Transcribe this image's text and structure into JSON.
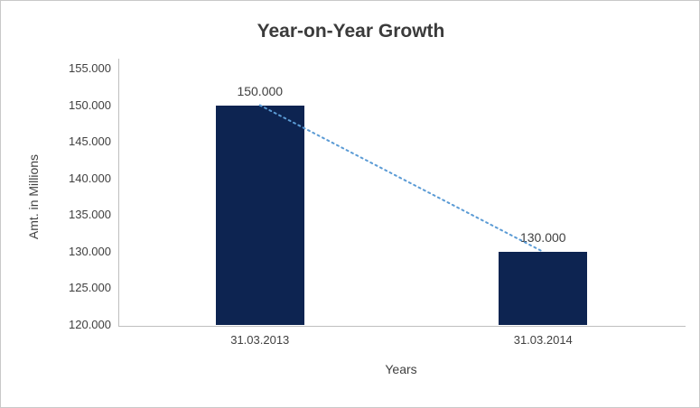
{
  "chart_data": {
    "type": "bar",
    "title": "Year-on-Year Growth",
    "xlabel": "Years",
    "ylabel": "Amt. in Millions",
    "categories": [
      "31.03.2013",
      "31.03.2014"
    ],
    "values": [
      150000,
      130000
    ],
    "value_labels": [
      "150.000",
      "130.000"
    ],
    "ylim": [
      120000,
      155000
    ],
    "y_ticks": [
      120000,
      125000,
      130000,
      135000,
      140000,
      145000,
      150000,
      155000
    ],
    "y_tick_labels": [
      "120.000",
      "125.000",
      "130.000",
      "135.000",
      "140.000",
      "145.000",
      "150.000",
      "155.000"
    ],
    "grid": false,
    "legend": "none",
    "bar_color": "#0d2451",
    "axis_color": "#bfbfbf",
    "text_color": "#404040",
    "trendline": {
      "type": "linear",
      "style": "dotted",
      "color": "#5b9bd5"
    }
  }
}
